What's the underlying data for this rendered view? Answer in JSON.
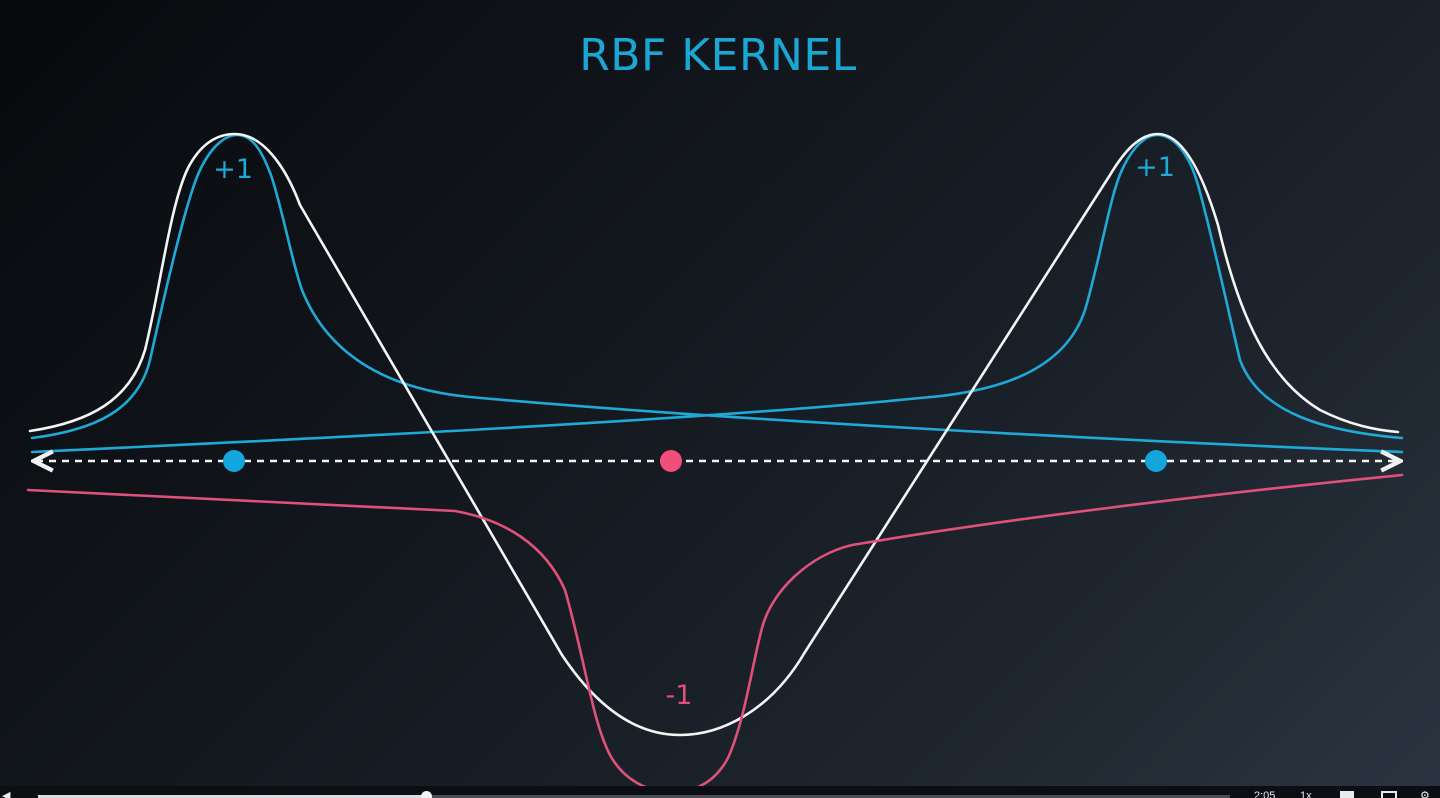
{
  "slide": {
    "title": "RBF KERNEL",
    "label_left": "+1",
    "label_right": "+1",
    "label_bottom": "-1",
    "colors": {
      "title": "#1aa7d3",
      "blue": "#1fa9d6",
      "pink": "#e0517a",
      "white": "#f4f4f4"
    }
  },
  "player": {
    "time": "2:05",
    "speed": "1x",
    "progress": 0.33,
    "icons": [
      "volume-icon",
      "captions-icon",
      "fullscreen-icon",
      "settings-icon"
    ]
  }
}
